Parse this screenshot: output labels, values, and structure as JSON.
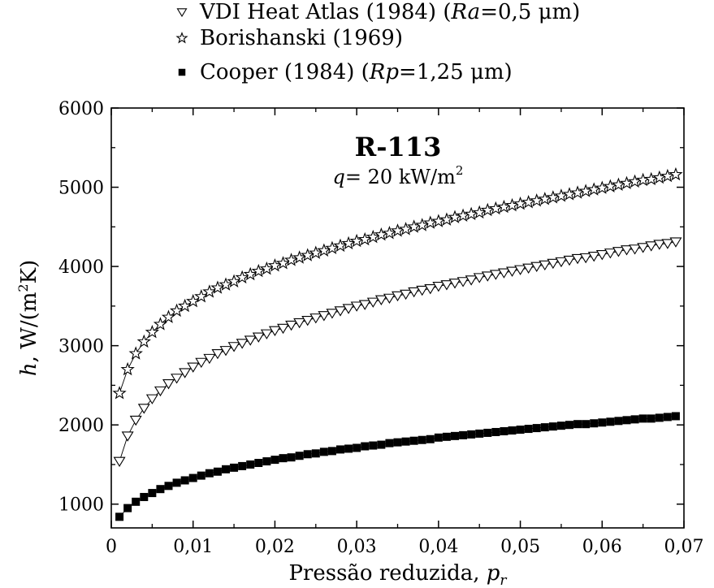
{
  "chart_data": {
    "type": "scatter",
    "title": "R-113",
    "subtitle": {
      "prefix": "q",
      "text": "= 20 kW/m",
      "sup": "2"
    },
    "xlabel": {
      "text": "Pressão reduzida, ",
      "var": "p",
      "sub": "r"
    },
    "ylabel": {
      "var": "h",
      "text": ", W/(m",
      "sup": "2",
      "end": "K)"
    },
    "xlim": [
      0,
      0.07
    ],
    "ylim": [
      700,
      6000
    ],
    "x_ticks": [
      0,
      0.01,
      0.02,
      0.03,
      0.04,
      0.05,
      0.06,
      0.07
    ],
    "x_tick_labels": [
      "0",
      "0,01",
      "0,02",
      "0,03",
      "0,04",
      "0,05",
      "0,06",
      "0,07"
    ],
    "y_ticks": [
      1000,
      2000,
      3000,
      4000,
      5000,
      6000
    ],
    "y_tick_labels": [
      "1000",
      "2000",
      "3000",
      "4000",
      "5000",
      "6000"
    ],
    "legend_position": "top, above plot",
    "x_start": 0.001,
    "x_step": 0.001,
    "x_count": 69,
    "series": [
      {
        "name": "VDI Heat Atlas (1984) (Ra=0,5 μm)",
        "legend": {
          "text1": "VDI Heat Atlas (1984) (",
          "var": "Ra",
          "text2": "=0,5 μm)"
        },
        "marker": "triangle-down-open",
        "color": "#000000",
        "x_start": 0.001,
        "x_step": 0.001,
        "values": [
          1540,
          1860,
          2060,
          2210,
          2330,
          2430,
          2520,
          2590,
          2660,
          2730,
          2790,
          2840,
          2900,
          2940,
          2990,
          3030,
          3070,
          3110,
          3150,
          3190,
          3220,
          3260,
          3290,
          3320,
          3350,
          3380,
          3410,
          3440,
          3470,
          3500,
          3520,
          3550,
          3580,
          3600,
          3630,
          3650,
          3680,
          3700,
          3720,
          3750,
          3770,
          3790,
          3810,
          3830,
          3860,
          3880,
          3900,
          3920,
          3940,
          3960,
          3980,
          4000,
          4020,
          4040,
          4060,
          4080,
          4100,
          4110,
          4130,
          4150,
          4170,
          4190,
          4210,
          4220,
          4240,
          4260,
          4280,
          4290,
          4310
        ]
      },
      {
        "name": "Borishanski (1969)",
        "legend": {
          "text1": "Borishanski (1969)",
          "var": "",
          "text2": ""
        },
        "marker": "star-open",
        "color": "#000000",
        "x_start": 0.001,
        "x_step": 0.001,
        "values": [
          2400,
          2700,
          2900,
          3050,
          3170,
          3270,
          3360,
          3440,
          3500,
          3560,
          3620,
          3680,
          3730,
          3770,
          3810,
          3860,
          3900,
          3940,
          3970,
          4010,
          4040,
          4080,
          4110,
          4140,
          4170,
          4200,
          4230,
          4260,
          4290,
          4320,
          4340,
          4370,
          4400,
          4420,
          4450,
          4470,
          4500,
          4520,
          4550,
          4570,
          4590,
          4620,
          4640,
          4660,
          4680,
          4710,
          4730,
          4750,
          4770,
          4790,
          4810,
          4830,
          4850,
          4870,
          4890,
          4910,
          4930,
          4950,
          4970,
          4990,
          5010,
          5030,
          5050,
          5070,
          5090,
          5100,
          5120,
          5140,
          5160
        ]
      },
      {
        "name": "Cooper (1984) (Rp=1,25 μm)",
        "legend": {
          "text1": "Cooper (1984) (",
          "var": "Rp",
          "text2": "=1,25 μm)"
        },
        "marker": "square-filled",
        "color": "#000000",
        "x_start": 0.001,
        "x_step": 0.001,
        "values": [
          840,
          950,
          1030,
          1090,
          1140,
          1190,
          1230,
          1270,
          1300,
          1330,
          1360,
          1390,
          1410,
          1440,
          1460,
          1480,
          1500,
          1520,
          1540,
          1560,
          1580,
          1590,
          1610,
          1630,
          1640,
          1660,
          1670,
          1690,
          1700,
          1710,
          1730,
          1740,
          1750,
          1770,
          1780,
          1790,
          1800,
          1810,
          1820,
          1840,
          1850,
          1860,
          1870,
          1880,
          1890,
          1900,
          1910,
          1920,
          1930,
          1940,
          1950,
          1960,
          1970,
          1980,
          1990,
          2000,
          2010,
          2010,
          2020,
          2030,
          2040,
          2050,
          2060,
          2070,
          2080,
          2080,
          2090,
          2100,
          2110
        ]
      }
    ]
  }
}
